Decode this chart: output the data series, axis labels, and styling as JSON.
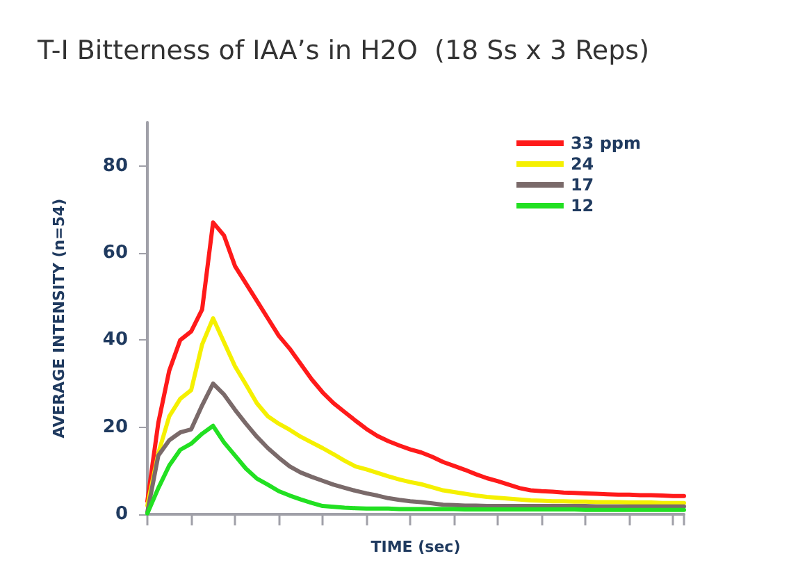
{
  "chart_data": {
    "type": "line",
    "title": "T-I Bitterness of IAA’s in H2O  (18 Ss x 3 Reps)",
    "xlabel": "TIME (sec)",
    "ylabel": "AVERAGE INTENSITY (n=54)",
    "categories": [
      null,
      null,
      null,
      null,
      null,
      null,
      null,
      null,
      null,
      null,
      null,
      null,
      null,
      null,
      null,
      null,
      null,
      null,
      null,
      null,
      null,
      null,
      null,
      null,
      null,
      null,
      null,
      null,
      null,
      null,
      null,
      null,
      null,
      null,
      null,
      null,
      null,
      null,
      null,
      null,
      null,
      null,
      null,
      null,
      null,
      null,
      null,
      null,
      null,
      null
    ],
    "series": [
      {
        "name": "33 ppm",
        "color": "#ff1a1a",
        "values": [
          3,
          21,
          33,
          40,
          42,
          47,
          67,
          64,
          57,
          53,
          49,
          45,
          41,
          38,
          34.5,
          31,
          28,
          25.5,
          23.5,
          21.5,
          19.6,
          18,
          16.8,
          15.8,
          14.9,
          14.2,
          13.2,
          12,
          11.1,
          10.2,
          9.2,
          8.3,
          7.6,
          6.8,
          6,
          5.5,
          5.3,
          5.2,
          5,
          4.9,
          4.8,
          4.7,
          4.6,
          4.5,
          4.5,
          4.4,
          4.4,
          4.3,
          4.2,
          4.2
        ]
      },
      {
        "name": "24",
        "color": "#f5f000",
        "values": [
          2,
          14,
          22.5,
          26.5,
          28.5,
          39,
          45,
          39.5,
          34,
          29.8,
          25.5,
          22.5,
          20.8,
          19.4,
          17.8,
          16.5,
          15.2,
          13.8,
          12.3,
          11,
          10.3,
          9.5,
          8.7,
          8,
          7.4,
          6.9,
          6.2,
          5.5,
          5.1,
          4.7,
          4.3,
          4,
          3.8,
          3.6,
          3.4,
          3.2,
          3.1,
          3,
          3,
          2.9,
          2.9,
          2.8,
          2.8,
          2.8,
          2.7,
          2.7,
          2.7,
          2.6,
          2.6,
          2.6
        ]
      },
      {
        "name": "17",
        "color": "#7a6a6a",
        "values": [
          0.5,
          13.5,
          17,
          18.8,
          19.5,
          25,
          30,
          27.5,
          24,
          20.8,
          17.8,
          15.2,
          13,
          11,
          9.6,
          8.6,
          7.7,
          6.8,
          6.1,
          5.4,
          4.8,
          4.3,
          3.7,
          3.3,
          3,
          2.8,
          2.5,
          2.2,
          2.1,
          2,
          2,
          1.9,
          1.9,
          1.9,
          1.9,
          1.9,
          1.9,
          1.9,
          1.9,
          1.9,
          1.9,
          1.8,
          1.8,
          1.8,
          1.8,
          1.8,
          1.8,
          1.8,
          1.8,
          1.8
        ]
      },
      {
        "name": "12",
        "color": "#22e022",
        "values": [
          0.2,
          6,
          11.2,
          14.8,
          16.2,
          18.5,
          20.3,
          16.5,
          13.5,
          10.5,
          8.2,
          6.8,
          5.3,
          4.3,
          3.4,
          2.6,
          1.9,
          1.7,
          1.5,
          1.4,
          1.3,
          1.3,
          1.3,
          1.2,
          1.2,
          1.2,
          1.2,
          1.2,
          1.2,
          1.1,
          1.1,
          1.1,
          1.1,
          1.1,
          1.1,
          1.1,
          1.1,
          1.1,
          1.1,
          1.1,
          1,
          1,
          1,
          1,
          1,
          1,
          1,
          1,
          1,
          1
        ]
      }
    ],
    "ylim": [
      0,
      90
    ],
    "yticks": [
      0,
      20,
      40,
      60,
      80
    ],
    "tick_labels": "y",
    "grid": false,
    "legend": "top right",
    "line_style": "solid"
  }
}
